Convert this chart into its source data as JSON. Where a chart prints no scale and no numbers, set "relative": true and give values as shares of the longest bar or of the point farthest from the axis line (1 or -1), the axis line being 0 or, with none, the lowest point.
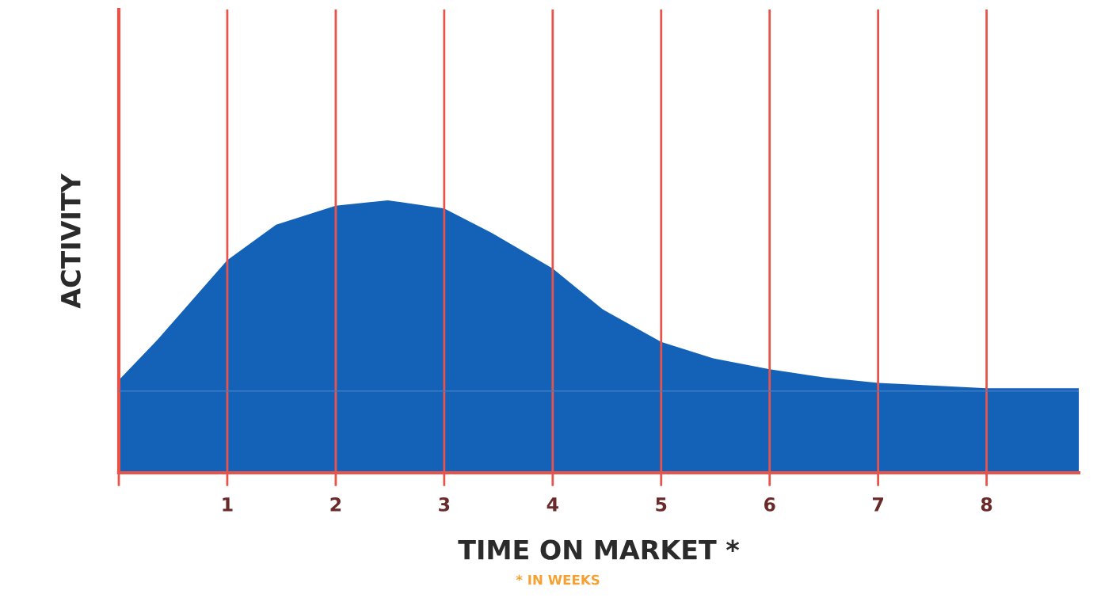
{
  "chart_data": {
    "type": "area",
    "relative": true,
    "xlabel": "TIME ON MARKET *",
    "ylabel": "ACTIVITY",
    "annotations": [
      "* IN WEEKS"
    ],
    "xlim": [
      0,
      8.85
    ],
    "xticks": [
      {
        "value": 0,
        "label": null
      },
      1,
      2,
      3,
      4,
      5,
      6,
      7,
      8
    ],
    "grid": "x",
    "series": [
      {
        "color": "#1462b8",
        "x": [
          0,
          0.36,
          1,
          1.45,
          2,
          2.48,
          3,
          3.44,
          4,
          4.46,
          5,
          5.48,
          6,
          6.5,
          7,
          7.53,
          8,
          8.85
        ],
        "values": [
          0.34,
          0.49,
          0.78,
          0.91,
          0.98,
          1.0,
          0.97,
          0.88,
          0.75,
          0.6,
          0.48,
          0.42,
          0.38,
          0.35,
          0.33,
          0.32,
          0.31,
          0.31
        ]
      }
    ],
    "ref_lines": [
      {
        "axis": "y",
        "value": 0.3,
        "color": "#3f7cc4"
      }
    ]
  }
}
